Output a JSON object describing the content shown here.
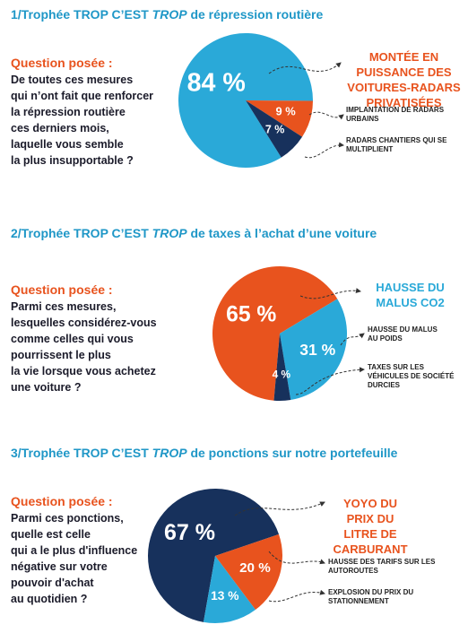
{
  "chart_data": [
    {
      "type": "pie",
      "title": [
        "1/Trophée TROP C’EST ",
        "TROP",
        " de répression routière"
      ],
      "question_label": "Question posée :",
      "question": [
        "De toutes ces mesures",
        "qui n’ont fait que renforcer",
        "la répression routière",
        "ces derniers mois,",
        "laquelle vous semble",
        "la plus insupportable ?"
      ],
      "categories": [
        "MONTÉE EN PUISSANCE DES VOITURES-RADARS PRIVATISÉES",
        "IMPLANTATION DE RADARS URBAINS",
        "RADARS CHANTIERS QUI SE MULTIPLIENT"
      ],
      "values": [
        84,
        9,
        7
      ],
      "value_labels": [
        "84 %",
        "9 %",
        "7 %"
      ],
      "colors": [
        "#2aa9d8",
        "#e8531e",
        "#17315c"
      ],
      "callout_color": "#e8531e"
    },
    {
      "type": "pie",
      "title": [
        "2/Trophée TROP C’EST ",
        "TROP",
        " de taxes à l’achat d’une voiture"
      ],
      "question_label": "Question posée :",
      "question": [
        "Parmi ces mesures,",
        "lesquelles considérez-vous",
        "comme celles qui vous",
        "pourrissent le plus",
        "la vie lorsque vous achetez",
        "une voiture ?"
      ],
      "categories": [
        "HAUSSE DU MALUS CO2",
        "HAUSSE DU MALUS AU POIDS",
        "TAXES SUR LES VÉHICULES DE SOCIÉTÉ DURCIES"
      ],
      "values": [
        65,
        31,
        4
      ],
      "value_labels": [
        "65 %",
        "31 %",
        "4 %"
      ],
      "colors": [
        "#e8531e",
        "#2aa9d8",
        "#17315c"
      ],
      "callout_color": "#2aa9d8"
    },
    {
      "type": "pie",
      "title": [
        "3/Trophée TROP C’EST ",
        "TROP",
        " de ponctions sur notre portefeuille"
      ],
      "question_label": "Question posée :",
      "question": [
        "Parmi ces ponctions,",
        "quelle est celle",
        "qui a le plus d'influence",
        "négative sur votre",
        "pouvoir d'achat",
        "au quotidien ?"
      ],
      "categories": [
        "YOYO DU PRIX DU LITRE DE CARBURANT",
        "HAUSSE DES TARIFS SUR LES AUTOROUTES",
        "EXPLOSION DU PRIX DU STATIONNEMENT"
      ],
      "values": [
        67,
        20,
        13
      ],
      "value_labels": [
        "67 %",
        "20 %",
        "13 %"
      ],
      "colors": [
        "#17315c",
        "#e8531e",
        "#2aa9d8"
      ],
      "callout_color": "#e8531e"
    }
  ]
}
